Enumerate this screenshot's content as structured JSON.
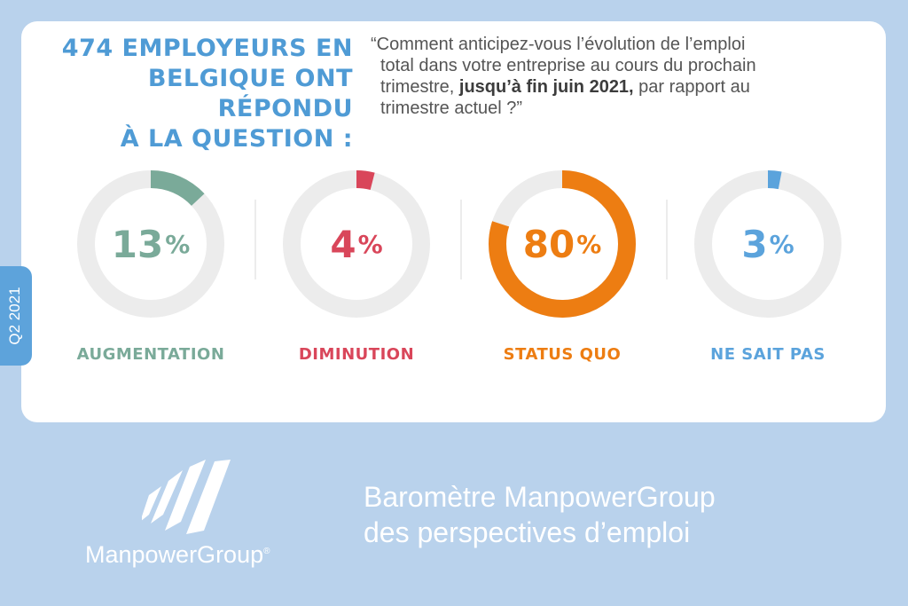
{
  "header": {
    "headline_lines": [
      "474 EMPLOYEURS EN",
      "BELGIQUE ONT RÉPONDU",
      "À LA QUESTION :"
    ],
    "question": {
      "line1": "“Comment anticipez-vous l’évolution de l’emploi",
      "line2": "total dans votre entreprise au cours du prochain",
      "line3_pre": "trimestre, ",
      "line3_bold": "jusqu’à fin juin 2021,",
      "line3_post": " par rapport au",
      "line4": "trimestre actuel ?”"
    }
  },
  "period_tab": "Q2 2021",
  "chart_data": {
    "type": "pie",
    "categories": [
      "AUGMENTATION",
      "DIMINUTION",
      "STATUS QUO",
      "NE SAIT PAS"
    ],
    "values": [
      13,
      4,
      80,
      3
    ],
    "unit": "%",
    "colors": [
      "#7aaa99",
      "#d9465a",
      "#ed7d12",
      "#5ba3dc"
    ],
    "track_color": "#ececec"
  },
  "footer": {
    "brand": "ManpowerGroup",
    "brand_mark": "®",
    "title_line1": "Baromètre ManpowerGroup",
    "title_line2": "des perspectives d’emploi"
  }
}
